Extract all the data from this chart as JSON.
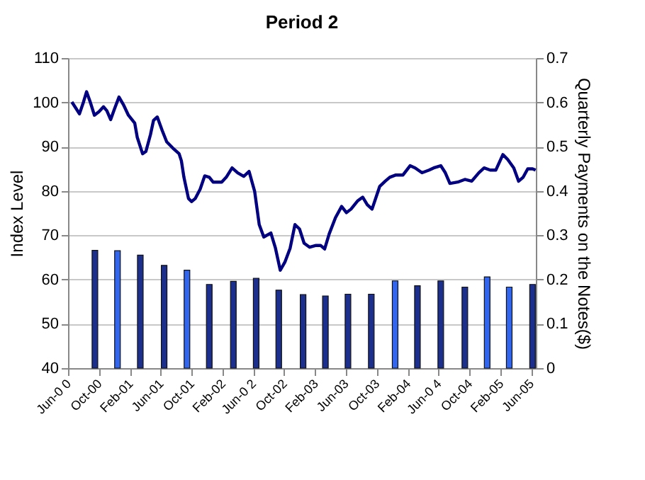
{
  "chart_data": {
    "type": "line",
    "title": "Period 2",
    "ylabel": "Index Level",
    "y2label": "Quarterly Payments on the Notes($)",
    "xlim": [
      "2000-06-01",
      "2005-06-20"
    ],
    "xticks": [
      {
        "value": "2000-06-01",
        "label": "Jun-0 0"
      },
      {
        "value": "2000-10-01",
        "label": "Oct-00"
      },
      {
        "value": "2001-02-01",
        "label": "Feb-01"
      },
      {
        "value": "2001-06-01",
        "label": "Jun-01"
      },
      {
        "value": "2001-10-01",
        "label": "Oct-01"
      },
      {
        "value": "2002-02-01",
        "label": "Feb-02"
      },
      {
        "value": "2002-06-01",
        "label": "Jun-0 2"
      },
      {
        "value": "2002-10-01",
        "label": "Oct-02"
      },
      {
        "value": "2003-02-01",
        "label": "Feb-03"
      },
      {
        "value": "2003-06-01",
        "label": "Jun-03"
      },
      {
        "value": "2003-10-01",
        "label": "Oct-03"
      },
      {
        "value": "2004-02-01",
        "label": "Feb-04"
      },
      {
        "value": "2004-06-01",
        "label": "Jun-0 4"
      },
      {
        "value": "2004-10-01",
        "label": "Oct-04"
      },
      {
        "value": "2005-02-01",
        "label": "Feb-05"
      },
      {
        "value": "2005-06-01",
        "label": "Jun-05"
      }
    ],
    "ylim": [
      40,
      110
    ],
    "yticks": [
      40,
      50,
      60,
      70,
      80,
      90,
      100,
      110
    ],
    "y2lim": [
      0,
      0.7
    ],
    "y2ticks": [
      {
        "value": 0,
        "label": "0"
      },
      0.1,
      0.2,
      0.3,
      0.4,
      0.5,
      0.6,
      0.7
    ],
    "grid": "y",
    "marker": "none",
    "line_style": "solid",
    "series": [
      {
        "type": "bar",
        "axis": "y2",
        "x": [
          "2000-09-15",
          "2000-12-13",
          "2001-03-13",
          "2001-06-15",
          "2001-09-13",
          "2001-12-10",
          "2002-03-15",
          "2002-06-13",
          "2002-09-10",
          "2002-12-15",
          "2003-03-13",
          "2003-06-10",
          "2003-09-10",
          "2003-12-13",
          "2004-03-10",
          "2004-06-10",
          "2004-09-13",
          "2004-12-10",
          "2005-03-07",
          "2005-06-07"
        ],
        "values": [
          0.266,
          0.265,
          0.255,
          0.232,
          0.221,
          0.189,
          0.196,
          0.203,
          0.176,
          0.166,
          0.163,
          0.167,
          0.167,
          0.197,
          0.186,
          0.197,
          0.183,
          0.206,
          0.183,
          0.189
        ],
        "colors": [
          "#1c2f8c",
          "#3366ee",
          "#1c2f8c",
          "#1c2f8c",
          "#3366ee",
          "#1c2f8c",
          "#1c2f8c",
          "#1c2f8c",
          "#1c2f8c",
          "#1c2f8c",
          "#1c2f8c",
          "#1c2f8c",
          "#1c2f8c",
          "#3366ee",
          "#1c2f8c",
          "#1c2f8c",
          "#1c2f8c",
          "#3366ee",
          "#3366ee",
          "#1c2f8c"
        ]
      },
      {
        "color": "#000080",
        "x": [
          "2000-06-16",
          "2000-07-04",
          "2000-07-16",
          "2000-08-01",
          "2000-08-13",
          "2000-08-28",
          "2000-09-13",
          "2000-10-01",
          "2000-10-19",
          "2000-11-01",
          "2000-11-16",
          "2000-12-01",
          "2000-12-19",
          "2001-01-07",
          "2001-01-25",
          "2001-02-19",
          "2001-03-01",
          "2001-03-22",
          "2001-04-04",
          "2001-04-22",
          "2001-05-04",
          "2001-05-19",
          "2001-06-07",
          "2001-06-25",
          "2001-07-19",
          "2001-08-13",
          "2001-08-22",
          "2001-09-01",
          "2001-09-19",
          "2001-10-01",
          "2001-10-16",
          "2001-11-04",
          "2001-11-22",
          "2001-12-10",
          "2001-12-25",
          "2002-01-28",
          "2002-02-15",
          "2002-03-10",
          "2002-04-01",
          "2002-04-25",
          "2002-05-16",
          "2002-06-07",
          "2002-06-25",
          "2002-07-13",
          "2002-08-10",
          "2002-08-28",
          "2002-09-16",
          "2002-10-04",
          "2002-10-25",
          "2002-11-13",
          "2002-12-01",
          "2002-12-19",
          "2003-01-10",
          "2003-02-04",
          "2003-02-22",
          "2003-03-10",
          "2003-03-28",
          "2003-04-22",
          "2003-05-16",
          "2003-06-04",
          "2003-06-22",
          "2003-07-19",
          "2003-08-07",
          "2003-08-25",
          "2003-09-13",
          "2003-10-13",
          "2003-11-04",
          "2003-11-22",
          "2003-12-16",
          "2004-01-13",
          "2004-02-10",
          "2004-03-01",
          "2004-03-28",
          "2004-04-25",
          "2004-05-13",
          "2004-06-10",
          "2004-06-28",
          "2004-07-16",
          "2004-08-16",
          "2004-09-13",
          "2004-10-10",
          "2004-11-07",
          "2004-11-28",
          "2004-12-22",
          "2005-01-13",
          "2005-02-10",
          "2005-03-01",
          "2005-03-25",
          "2005-04-13",
          "2005-05-01",
          "2005-05-19",
          "2005-06-07",
          "2005-06-19"
        ],
        "values": [
          100.1,
          98.5,
          97.4,
          100.1,
          102.4,
          100,
          97.1,
          97.9,
          99,
          98.1,
          96.1,
          98.5,
          101.2,
          99.3,
          97.1,
          95.3,
          92.1,
          88.4,
          88.9,
          92.7,
          95.9,
          96.7,
          93.7,
          91.1,
          89.7,
          88.4,
          86.8,
          83.1,
          78.3,
          77.6,
          78.3,
          80.4,
          83.4,
          83.1,
          82,
          82,
          83.1,
          85.2,
          84.1,
          83.3,
          84.4,
          79.9,
          72.4,
          69.6,
          70.5,
          67.1,
          62.1,
          63.9,
          67.1,
          72.4,
          71.4,
          68.2,
          67.3,
          67.7,
          67.7,
          66.9,
          70.3,
          74,
          76.5,
          75.1,
          75.9,
          77.8,
          78.6,
          76.9,
          75.9,
          81,
          82.2,
          83.1,
          83.6,
          83.6,
          85.7,
          85.2,
          84.1,
          84.7,
          85.2,
          85.7,
          84.1,
          81.7,
          82,
          82.6,
          82.2,
          84.1,
          85.2,
          84.7,
          84.7,
          88.2,
          87.1,
          85.2,
          82.2,
          83.1,
          85,
          85,
          84.7
        ]
      }
    ]
  }
}
